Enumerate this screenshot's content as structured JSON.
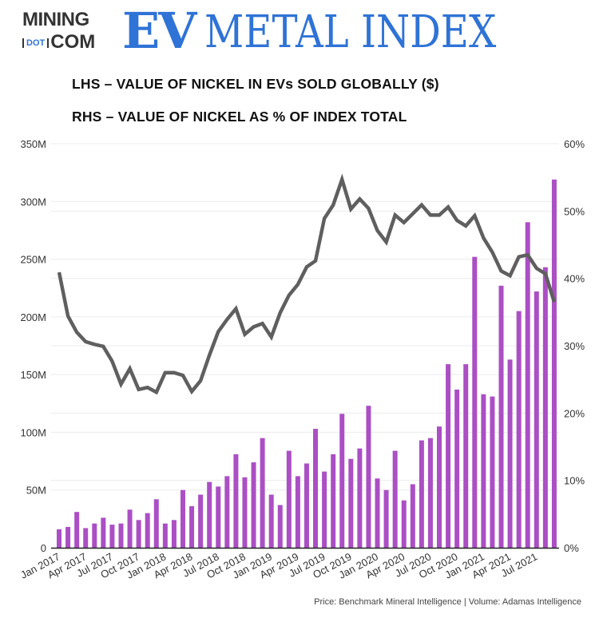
{
  "logo": {
    "line1": "MINING",
    "dot": "DOT",
    "line2": "COM",
    "ev": "EV",
    "rest": "METAL INDEX"
  },
  "colors": {
    "bar": "#ab4fc4",
    "line": "#5f5f5f",
    "brand": "#2f73d6"
  },
  "footer": "Price: Benchmark Mineral Intelligence | Volume: Adamas Intelligence",
  "chart_data": {
    "type": "bar+line",
    "title_lhs": "LHS – VALUE OF NICKEL IN EVs SOLD GLOBALLY ($)",
    "title_rhs": "RHS – VALUE OF NICKEL AS % OF INDEX TOTAL",
    "ylim_left": [
      0,
      350
    ],
    "yticks_left": [
      "0",
      "50M",
      "100M",
      "150M",
      "200M",
      "250M",
      "300M",
      "350M"
    ],
    "ylim_right": [
      0,
      60
    ],
    "yticks_right": [
      "0%",
      "10%",
      "20%",
      "30%",
      "40%",
      "50%",
      "60%"
    ],
    "xtick_labels": [
      "Jan 2017",
      "Apr 2017",
      "Jul 2017",
      "Oct 2017",
      "Jan 2018",
      "Apr 2018",
      "Jul 2018",
      "Oct 2018",
      "Jan 2019",
      "Apr 2019",
      "Jul 2019",
      "Oct 2019",
      "Jan 2020",
      "Apr 2020",
      "Jul 2020",
      "Oct 2020",
      "Jan 2021",
      "Apr 2021",
      "Jul 2021"
    ],
    "grid": true,
    "x_start": "Jan 2017",
    "x_end": "Sep 2021",
    "bar_values_millions": [
      16,
      18,
      31,
      17,
      21,
      26,
      20,
      21,
      33,
      24,
      30,
      42,
      21,
      24,
      50,
      36,
      46,
      57,
      53,
      62,
      81,
      61,
      74,
      95,
      46,
      37,
      84,
      62,
      73,
      103,
      66,
      81,
      116,
      77,
      86,
      123,
      60,
      50,
      84,
      41,
      55,
      93,
      95,
      105,
      159,
      137,
      159,
      252,
      133,
      131,
      227,
      163,
      205,
      282,
      222,
      243,
      319
    ],
    "line_values_percent": [
      40.9,
      34.4,
      32.0,
      30.6,
      30.2,
      29.9,
      27.7,
      24.3,
      26.6,
      23.5,
      23.8,
      23.1,
      26.0,
      26.0,
      25.6,
      23.2,
      24.8,
      28.6,
      32.1,
      33.9,
      35.5,
      31.7,
      32.8,
      33.3,
      31.3,
      34.9,
      37.5,
      39.1,
      41.7,
      42.6,
      48.9,
      50.9,
      54.7,
      50.3,
      51.8,
      50.4,
      47.1,
      45.4,
      49.4,
      48.3,
      49.6,
      50.9,
      49.4,
      49.4,
      50.6,
      48.6,
      47.8,
      49.3,
      46.0,
      43.9,
      41.1,
      40.4,
      43.2,
      43.5,
      41.5,
      40.7,
      36.5
    ]
  }
}
